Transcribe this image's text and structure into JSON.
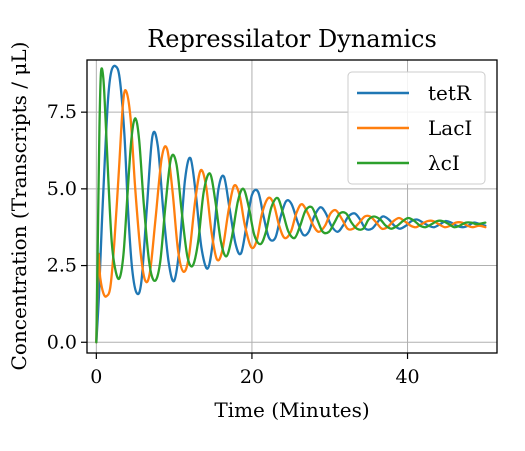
{
  "chart_data": {
    "type": "line",
    "title": "Repressilator Dynamics",
    "xlabel": "Time (Minutes)",
    "ylabel": "Concentration (Transcripts / μL)",
    "xlim": [
      -1.2,
      51.5
    ],
    "ylim": [
      -0.35,
      9.2
    ],
    "xticks": [
      0,
      20,
      40
    ],
    "xtick_labels": [
      "0",
      "20",
      "40"
    ],
    "yticks": [
      0.0,
      2.5,
      5.0,
      7.5
    ],
    "ytick_labels": [
      "0.0",
      "2.5",
      "5.0",
      "7.5"
    ],
    "grid": true,
    "legend_position": "top-right",
    "series": [
      {
        "name": "tetR",
        "color": "#1f77b4",
        "x": [
          0,
          0.35,
          0.7,
          1.1,
          1.5,
          1.9,
          2.45,
          3.0,
          3.6,
          4.1,
          4.6,
          5.2,
          5.8,
          6.5,
          7.2,
          7.9,
          8.6,
          9.3,
          10.0,
          10.7,
          11.4,
          12.1,
          12.8,
          13.5,
          14.3,
          15.0,
          15.7,
          16.4,
          17.1,
          17.9,
          18.6,
          19.3,
          20.0,
          20.8,
          21.5,
          22.2,
          23.0,
          23.7,
          24.4,
          25.1,
          25.9,
          26.6,
          27.3,
          28.0,
          28.8,
          29.5,
          30.2,
          31.0,
          31.7,
          32.4,
          33.2,
          33.9,
          34.6,
          35.4,
          36.1,
          36.8,
          37.6,
          38.3,
          39.0,
          39.8,
          40.5,
          41.2,
          42.0,
          42.7,
          43.4,
          44.2,
          44.9,
          45.6,
          46.3,
          47.1,
          47.8,
          48.5,
          49.3,
          50.0
        ],
        "y": [
          0.0,
          1.6,
          3.8,
          6.0,
          7.9,
          8.8,
          9.0,
          8.6,
          6.8,
          4.2,
          2.4,
          1.6,
          2.0,
          4.4,
          6.7,
          6.4,
          4.3,
          2.6,
          2.0,
          3.1,
          5.3,
          6.0,
          4.8,
          3.1,
          2.4,
          3.3,
          5.0,
          5.4,
          4.4,
          3.2,
          2.9,
          3.8,
          4.8,
          4.9,
          4.1,
          3.4,
          3.4,
          4.1,
          4.6,
          4.5,
          3.9,
          3.5,
          3.6,
          4.1,
          4.4,
          4.2,
          3.8,
          3.6,
          3.8,
          4.1,
          4.2,
          4.0,
          3.7,
          3.7,
          3.9,
          4.1,
          4.0,
          3.8,
          3.7,
          3.8,
          3.95,
          4.0,
          3.9,
          3.8,
          3.75,
          3.85,
          3.95,
          3.9,
          3.8,
          3.75,
          3.8,
          3.9,
          3.85,
          3.8
        ]
      },
      {
        "name": "LacI",
        "color": "#ff7f0e",
        "x": [
          0,
          0.25,
          0.5,
          0.9,
          1.3,
          1.8,
          2.3,
          2.9,
          3.4,
          3.8,
          4.4,
          5.0,
          5.7,
          6.3,
          6.9,
          7.6,
          8.4,
          9.1,
          9.8,
          10.5,
          11.2,
          11.9,
          12.7,
          13.4,
          14.1,
          14.8,
          15.5,
          16.2,
          17.0,
          17.7,
          18.4,
          19.1,
          19.9,
          20.6,
          21.3,
          22.1,
          22.8,
          23.5,
          24.2,
          25.0,
          25.7,
          26.4,
          27.2,
          27.9,
          28.6,
          29.4,
          30.1,
          30.8,
          31.6,
          32.3,
          33.0,
          33.8,
          34.5,
          35.2,
          36.0,
          36.7,
          37.4,
          38.2,
          38.9,
          39.6,
          40.4,
          41.1,
          41.8,
          42.6,
          43.3,
          44.0,
          44.8,
          45.5,
          46.2,
          47.0,
          47.7,
          48.4,
          49.2,
          50.0
        ],
        "y": [
          0.0,
          2.8,
          2.1,
          1.6,
          1.5,
          1.8,
          3.2,
          5.6,
          7.7,
          8.2,
          7.3,
          5.0,
          2.9,
          2.0,
          2.3,
          4.0,
          6.0,
          6.3,
          4.9,
          3.0,
          2.3,
          2.8,
          4.6,
          5.6,
          5.1,
          3.6,
          2.7,
          3.0,
          4.3,
          5.1,
          4.8,
          3.8,
          3.1,
          3.3,
          4.2,
          4.7,
          4.5,
          3.8,
          3.4,
          3.6,
          4.2,
          4.5,
          4.2,
          3.8,
          3.6,
          3.8,
          4.2,
          4.3,
          4.0,
          3.7,
          3.7,
          3.9,
          4.1,
          4.1,
          3.9,
          3.7,
          3.75,
          3.95,
          4.05,
          3.95,
          3.8,
          3.75,
          3.85,
          3.95,
          3.95,
          3.85,
          3.75,
          3.8,
          3.9,
          3.9,
          3.8,
          3.75,
          3.8,
          3.75
        ]
      },
      {
        "name": "λcI",
        "color": "#2ca02c",
        "x": [
          0,
          0.2,
          0.4,
          0.6,
          0.9,
          1.2,
          1.6,
          2.0,
          2.5,
          3.0,
          3.5,
          4.0,
          4.5,
          5.0,
          5.5,
          6.1,
          6.8,
          7.5,
          8.2,
          8.9,
          9.6,
          10.3,
          11.0,
          11.7,
          12.4,
          13.1,
          13.8,
          14.6,
          15.3,
          16.0,
          16.7,
          17.4,
          18.2,
          18.9,
          19.6,
          20.3,
          21.1,
          21.8,
          22.5,
          23.3,
          24.0,
          24.7,
          25.5,
          26.2,
          26.9,
          27.7,
          28.4,
          29.1,
          29.9,
          30.6,
          31.3,
          32.1,
          32.8,
          33.5,
          34.3,
          35.0,
          35.7,
          36.5,
          37.2,
          37.9,
          38.7,
          39.4,
          40.1,
          40.9,
          41.6,
          42.3,
          43.1,
          43.8,
          44.5,
          45.3,
          46.0,
          46.7,
          47.5,
          48.2,
          48.9,
          50.0
        ],
        "y": [
          0.0,
          3.5,
          7.0,
          8.8,
          8.6,
          7.2,
          5.0,
          3.2,
          2.3,
          2.1,
          2.9,
          4.8,
          6.6,
          7.3,
          6.6,
          4.5,
          2.6,
          2.0,
          2.6,
          4.5,
          6.0,
          5.8,
          4.2,
          2.8,
          2.5,
          3.3,
          4.9,
          5.5,
          4.6,
          3.3,
          2.8,
          3.4,
          4.6,
          5.0,
          4.4,
          3.5,
          3.2,
          3.6,
          4.4,
          4.7,
          4.2,
          3.6,
          3.4,
          3.8,
          4.3,
          4.4,
          4.0,
          3.6,
          3.6,
          3.9,
          4.2,
          4.2,
          3.9,
          3.7,
          3.7,
          4.0,
          4.1,
          4.0,
          3.8,
          3.7,
          3.8,
          3.95,
          4.05,
          3.95,
          3.8,
          3.75,
          3.85,
          3.95,
          3.95,
          3.85,
          3.75,
          3.8,
          3.9,
          3.9,
          3.85,
          3.9
        ]
      }
    ]
  }
}
